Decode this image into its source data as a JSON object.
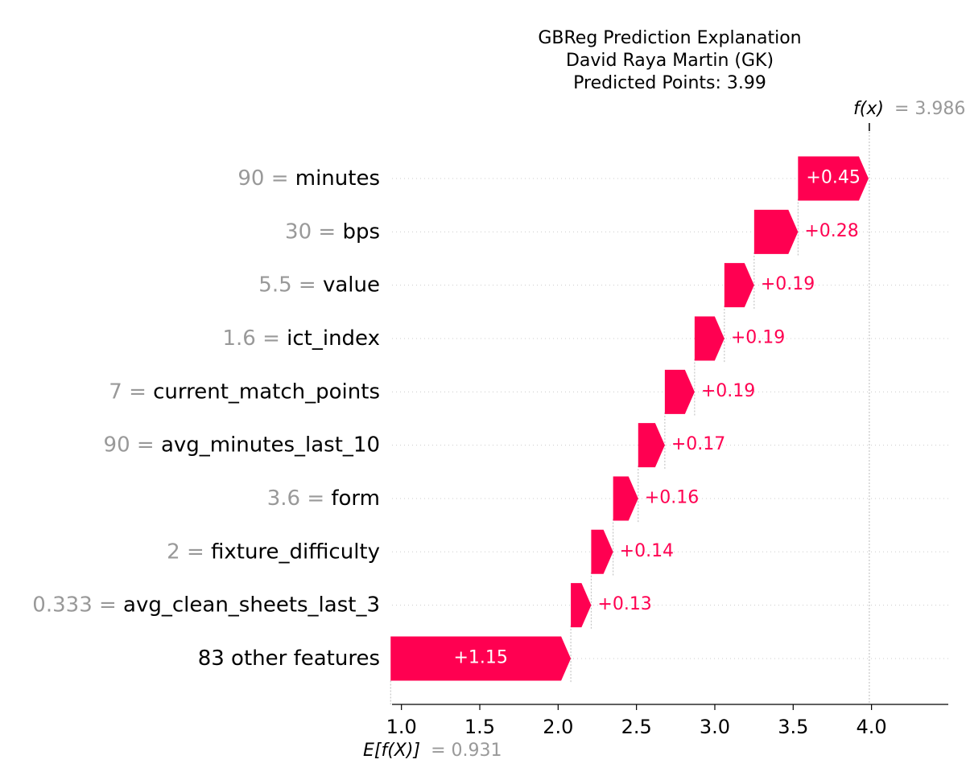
{
  "title_lines": [
    "GBReg Prediction Explanation",
    "David Raya Martin (GK)",
    "Predicted Points: 3.99"
  ],
  "fx_label": "f(x)",
  "fx_value_text": "= 3.986",
  "efx_label": "E[f(X)]",
  "efx_value_text": "= 0.931",
  "colors": {
    "positive": "#ff0051",
    "text_gray": "#999999",
    "grid": "#cccccc"
  },
  "chart_data": {
    "type": "waterfall",
    "base_value": 0.931,
    "output_value": 3.986,
    "xlim": [
      0.94,
      4.49
    ],
    "x_ticks": [
      1.0,
      1.5,
      2.0,
      2.5,
      3.0,
      3.5,
      4.0
    ],
    "x_tick_labels": [
      "1.0",
      "1.5",
      "2.0",
      "2.5",
      "3.0",
      "3.5",
      "4.0"
    ],
    "features": [
      {
        "value": "90",
        "name": "minutes",
        "contribution": 0.45,
        "label": "+0.45"
      },
      {
        "value": "30",
        "name": "bps",
        "contribution": 0.28,
        "label": "+0.28"
      },
      {
        "value": "5.5",
        "name": "value",
        "contribution": 0.19,
        "label": "+0.19"
      },
      {
        "value": "1.6",
        "name": "ict_index",
        "contribution": 0.19,
        "label": "+0.19"
      },
      {
        "value": "7",
        "name": "current_match_points",
        "contribution": 0.19,
        "label": "+0.19"
      },
      {
        "value": "90",
        "name": "avg_minutes_last_10",
        "contribution": 0.17,
        "label": "+0.17"
      },
      {
        "value": "3.6",
        "name": "form",
        "contribution": 0.16,
        "label": "+0.16"
      },
      {
        "value": "2",
        "name": "fixture_difficulty",
        "contribution": 0.14,
        "label": "+0.14"
      },
      {
        "value": "0.333",
        "name": "avg_clean_sheets_last_3",
        "contribution": 0.13,
        "label": "+0.13"
      },
      {
        "value": "",
        "name": "83 other features",
        "contribution": 1.15,
        "label": "+1.15"
      }
    ]
  }
}
